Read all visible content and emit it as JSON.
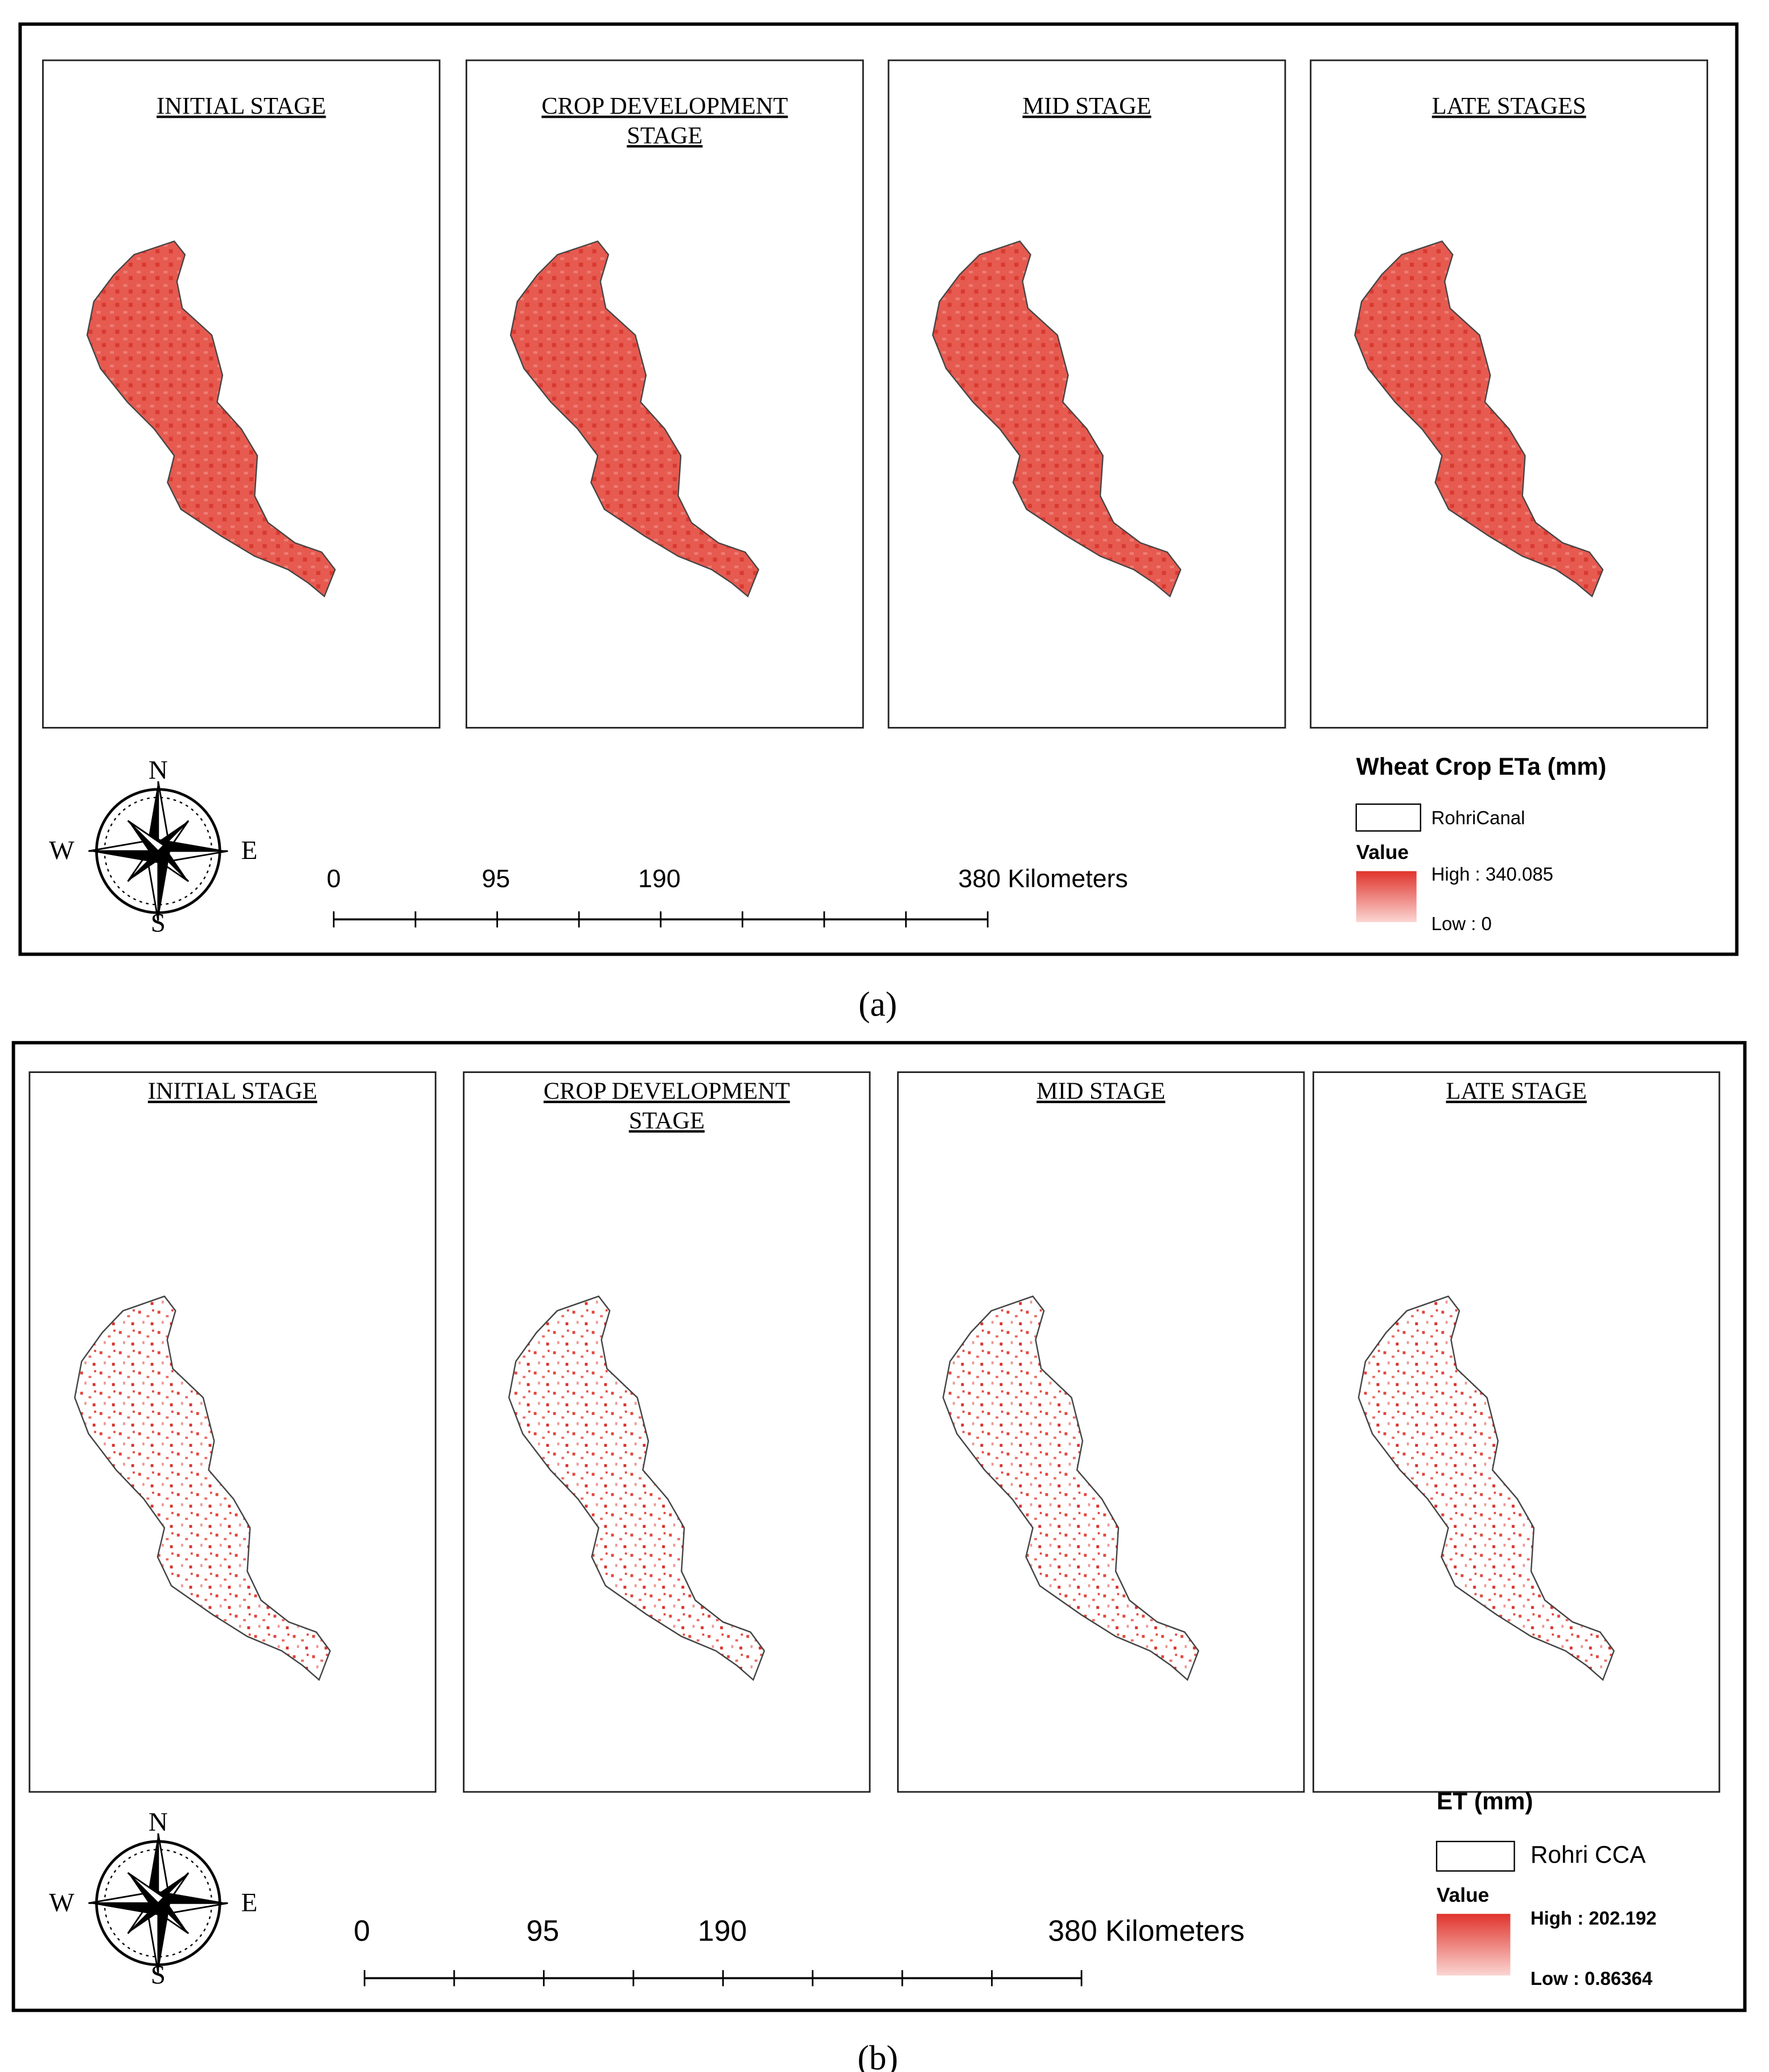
{
  "figures": [
    {
      "stages": [
        [
          "INITIAL STAGE"
        ],
        [
          "CROP DEVELOPMENT",
          "STAGE"
        ],
        [
          "MID STAGE"
        ],
        [
          "LATE STAGES"
        ]
      ],
      "legend": {
        "title": "Wheat Crop ETa (mm)",
        "layer": "RohriCanal",
        "value_label": "Value",
        "high": "High : 340.085",
        "low": "Low : 0"
      },
      "scale_labels": [
        "0",
        "95",
        "190",
        "380 Kilometers"
      ],
      "compass": {
        "n": "N",
        "e": "E",
        "s": "S",
        "w": "W"
      },
      "caption": "(a)"
    },
    {
      "stages": [
        [
          "INITIAL STAGE"
        ],
        [
          "CROP DEVELOPMENT",
          "STAGE"
        ],
        [
          "MID STAGE"
        ],
        [
          "LATE STAGE"
        ]
      ],
      "legend": {
        "title": "ET (mm)",
        "layer": "Rohri CCA",
        "value_label": "Value",
        "high": "High : 202.192",
        "low": "Low : 0.86364"
      },
      "scale_labels": [
        "0",
        "95",
        "190",
        "380 Kilometers"
      ],
      "compass": {
        "n": "N",
        "e": "E",
        "s": "S",
        "w": "W"
      },
      "caption": "(b)"
    }
  ]
}
